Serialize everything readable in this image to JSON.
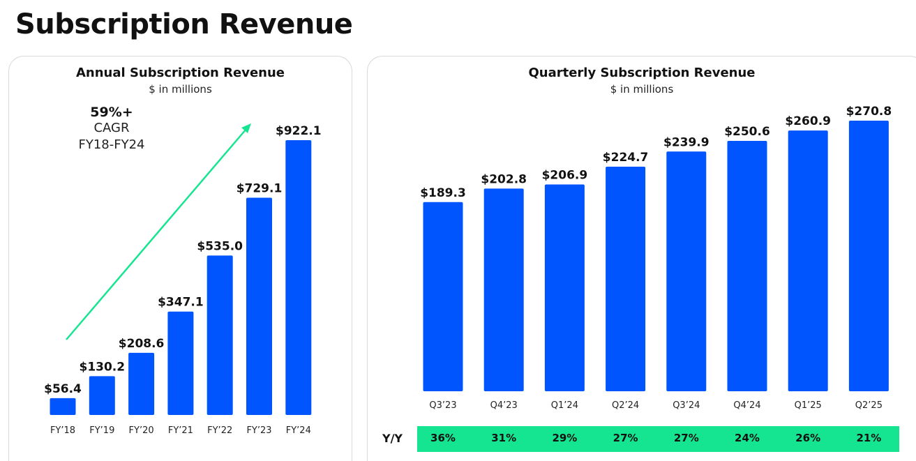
{
  "page": {
    "title": "Subscription Revenue"
  },
  "colors": {
    "bar": "#0055FF",
    "arrow": "#15E591",
    "yy_band": "#15E591"
  },
  "annual": {
    "title": "Annual Subscription Revenue",
    "subtitle": "$ in millions",
    "cagr": {
      "value": "59%+",
      "label": "CAGR",
      "range": "FY18-FY24"
    }
  },
  "quarterly": {
    "title": "Quarterly Subscription Revenue",
    "subtitle": "$ in millions",
    "yy_label": "Y/Y",
    "yy_values": [
      "36%",
      "31%",
      "29%",
      "27%",
      "27%",
      "24%",
      "26%",
      "21%"
    ]
  },
  "chart_data": [
    {
      "type": "bar",
      "title": "Annual Subscription Revenue",
      "subtitle": "$ in millions",
      "categories": [
        "FY’18",
        "FY’19",
        "FY’20",
        "FY’21",
        "FY’22",
        "FY’23",
        "FY’24"
      ],
      "values": [
        56.4,
        130.2,
        208.6,
        347.1,
        535.0,
        729.1,
        922.1
      ],
      "data_labels": [
        "$56.4",
        "$130.2",
        "$208.6",
        "$347.1",
        "$535.0",
        "$729.1",
        "$922.1"
      ],
      "ylim": [
        0,
        922.1
      ],
      "grid": false,
      "annotation": "59%+ CAGR FY18-FY24"
    },
    {
      "type": "bar",
      "title": "Quarterly Subscription Revenue",
      "subtitle": "$ in millions",
      "categories": [
        "Q3’23",
        "Q4’23",
        "Q1’24",
        "Q2’24",
        "Q3’24",
        "Q4’24",
        "Q1’25",
        "Q2’25"
      ],
      "values": [
        189.3,
        202.8,
        206.9,
        224.7,
        239.9,
        250.6,
        260.9,
        270.8
      ],
      "data_labels": [
        "$189.3",
        "$202.8",
        "$206.9",
        "$224.7",
        "$239.9",
        "$250.6",
        "$260.9",
        "$270.8"
      ],
      "yy": [
        "36%",
        "31%",
        "29%",
        "27%",
        "27%",
        "24%",
        "26%",
        "21%"
      ],
      "ylim": [
        0,
        270.8
      ],
      "grid": false
    }
  ]
}
